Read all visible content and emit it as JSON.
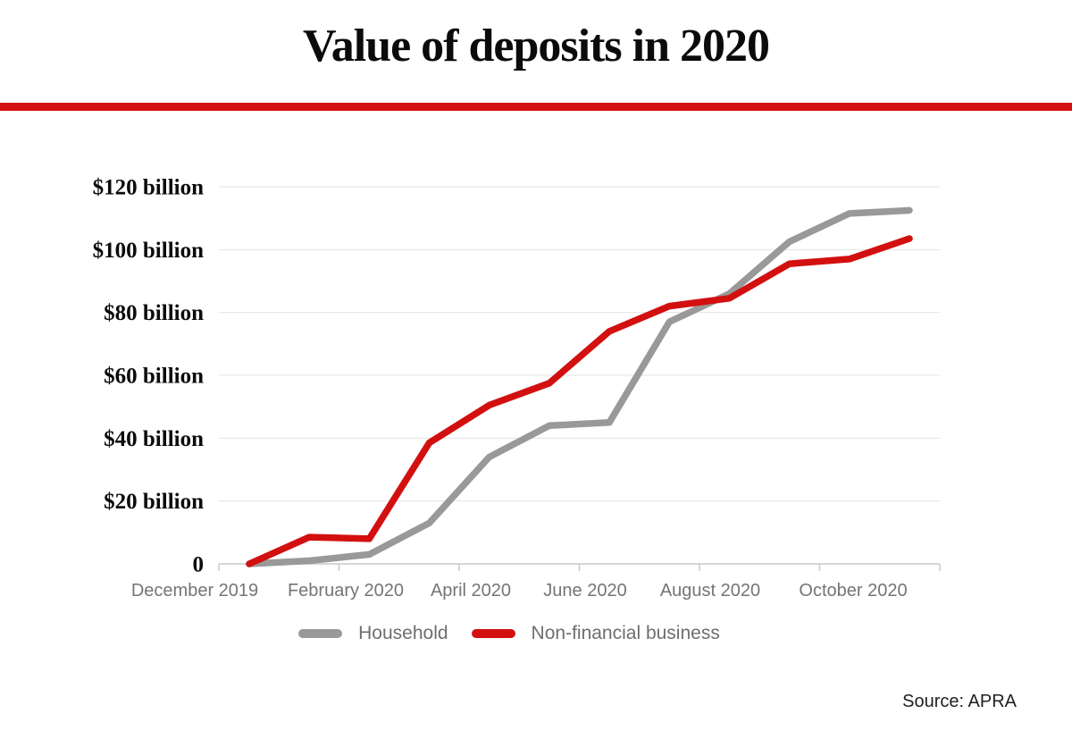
{
  "title": "Value of deposits in 2020",
  "source": "Source: APRA",
  "accent_color": "#d21010",
  "chart_data": {
    "type": "line",
    "title": "Value of deposits in 2020",
    "x": [
      "Dec 2019",
      "Jan 2020",
      "Feb 2020",
      "Mar 2020",
      "Apr 2020",
      "May 2020",
      "Jun 2020",
      "Jul 2020",
      "Aug 2020",
      "Sep 2020",
      "Oct 2020",
      "Nov 2020"
    ],
    "x_tick_labels": [
      "December 2019",
      "February 2020",
      "April 2020",
      "June 2020",
      "August 2020",
      "October 2020"
    ],
    "y_tick_labels": [
      "$120 billion",
      "$100 billion",
      "$80 billion",
      "$60 billion",
      "$40 billion",
      "$20 billion",
      "0"
    ],
    "ylim": [
      0,
      120
    ],
    "y_gridline_step": 20,
    "grid": true,
    "legend_position": "bottom",
    "series": [
      {
        "name": "Household",
        "color": "#999999",
        "values": [
          0,
          1,
          3,
          13,
          34,
          44,
          45,
          77,
          86,
          102.5,
          111.5,
          112.5
        ]
      },
      {
        "name": "Non-financial business",
        "color": "#d21010",
        "values": [
          0,
          8.5,
          8,
          38.5,
          50.5,
          57.5,
          74,
          82,
          84.5,
          95.5,
          97,
          103.5
        ]
      }
    ]
  }
}
